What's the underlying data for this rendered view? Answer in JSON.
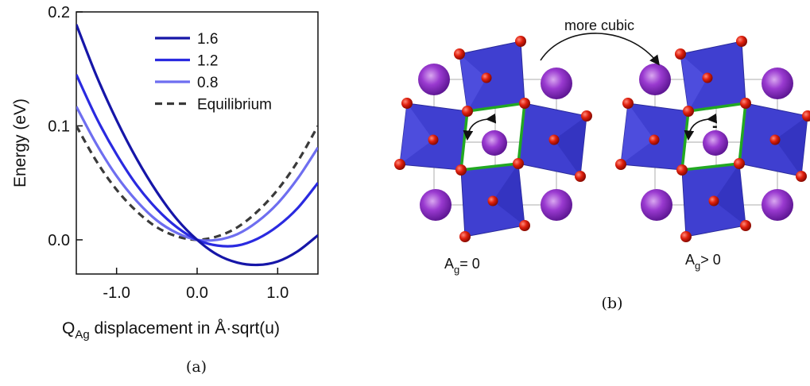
{
  "chart_data": {
    "type": "line",
    "x_label": {
      "main": "Q",
      "sub": "Ag",
      "rest": " displacement in Å·sqrt(u)"
    },
    "y_label": "Energy (eV)",
    "caption": "(a)",
    "x": [
      -1.5,
      -1.25,
      -1,
      -0.75,
      -0.5,
      -0.25,
      0,
      0.25,
      0.5,
      0.75,
      1,
      1.25,
      1.5
    ],
    "series": [
      {
        "name": "1.6",
        "color": "#1616a8",
        "dashed": false,
        "values": [
          0.189,
          0.144,
          0.105,
          0.071,
          0.042,
          0.018,
          0,
          -0.013,
          -0.02,
          -0.022,
          -0.019,
          -0.01,
          0.004
        ]
      },
      {
        "name": "1.2",
        "color": "#2a2ae0",
        "dashed": false,
        "values": [
          0.145,
          0.107,
          0.075,
          0.048,
          0.027,
          0.011,
          0,
          -0.005,
          -0.005,
          0.001,
          0.012,
          0.028,
          0.05
        ]
      },
      {
        "name": "0.8",
        "color": "#6e6ef0",
        "dashed": false,
        "values": [
          0.117,
          0.084,
          0.056,
          0.034,
          0.017,
          0.006,
          0,
          0,
          0.005,
          0.016,
          0.032,
          0.054,
          0.081
        ]
      },
      {
        "name": "Equilibrium",
        "color": "#3a3a3a",
        "dashed": true,
        "values": [
          0.1,
          0.069,
          0.044,
          0.025,
          0.011,
          0.003,
          0,
          0.003,
          0.011,
          0.025,
          0.044,
          0.069,
          0.1
        ]
      }
    ],
    "xlim": [
      -1.5,
      1.5
    ],
    "ylim": [
      -0.03,
      0.2
    ],
    "xticks": [
      {
        "value": -1,
        "label": "-1.0"
      },
      {
        "value": 0,
        "label": "0.0"
      },
      {
        "value": 1,
        "label": "1.0"
      }
    ],
    "yticks": [
      {
        "value": 0,
        "label": "0.0"
      },
      0.1,
      0.2
    ],
    "legend": "upper right",
    "grid": false
  },
  "diagram": {
    "arrow_label": "more cubic",
    "caption": "(b)",
    "panels": [
      {
        "label_main": "A",
        "label_sub": "g",
        "label_rest": "= 0"
      },
      {
        "label_main": "A",
        "label_sub": "g",
        "label_rest": "> 0",
        "angle_sign": "-"
      }
    ]
  }
}
